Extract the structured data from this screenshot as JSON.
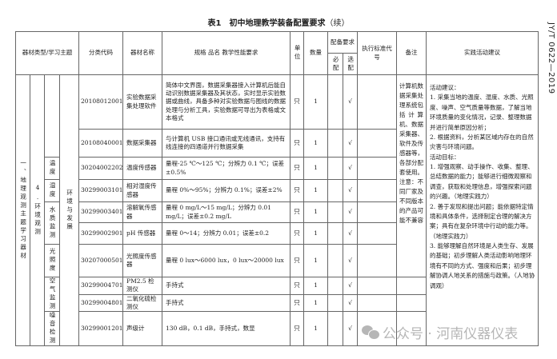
{
  "title": "表1　初中地理教学装备配置要求",
  "title_suffix": "（续）",
  "standard_code": "JY/T 0622—2019",
  "headers": {
    "category": "器材类型/学习主题",
    "code": "分类代码",
    "name": "器材名称",
    "spec": "规格 品名 教学性能要求",
    "unit": "单位",
    "qty": "数量",
    "config": "配备要求",
    "required": "必配",
    "optional": "选配",
    "standard": "执行标准代号",
    "remark": "备注",
    "activity": "实践活动建议"
  },
  "category": {
    "level1": "一、地理观测主题学习器材",
    "level2": "4.环境观测",
    "level4": "环境与发展",
    "sub": [
      "温度",
      "湿度",
      "水质监测",
      "光照度",
      "空气监测",
      "噪音检测"
    ]
  },
  "rows": [
    {
      "code": "20108012001",
      "name": "实验数据采集处理软件",
      "spec": "简体中文界面，数据采集器接入计算机后能自动识别数据采集器及其状态，实时显示实验数据或曲线，具备多种对实验数据与图线的数据处理与分析工具，实验数据可导出为表格或文本格式",
      "unit": "只",
      "qty": "1",
      "optional": "√"
    },
    {
      "code": "20108040001",
      "name": "数据采集器",
      "spec": "与计算机 USB 接口通讯或无线通讯，支持有线连接的四通道并行数据采集",
      "unit": "只",
      "qty": "1",
      "optional": "√"
    },
    {
      "code": "30204002202",
      "name": "温度传感器",
      "spec": "量程-25 ℃～125 ℃；分辨力 0.1 ℃；误差±0.5%",
      "unit": "只",
      "qty": "1",
      "optional": "√"
    },
    {
      "code": "30299003101",
      "name": "相对湿度传感器",
      "spec": "量程 0%～95%；分辨力 0.1%；误差±2%",
      "unit": "只",
      "qty": "1",
      "optional": "√"
    },
    {
      "code": "30299003401",
      "name": "溶解氧传感器",
      "spec": "量程 0 mg/L～15 mg/L；分辨力 0.01 mg/L；误差±0.2 mg/L",
      "unit": "只",
      "qty": "1",
      "optional": "√"
    },
    {
      "code": "30299002901",
      "name": "pH 传感器",
      "spec": "量程 0～14；分辨力 0.01；误差±0.2",
      "unit": "只",
      "qty": "1",
      "optional": "√"
    },
    {
      "code": "30207000501",
      "name": "光照度传感器",
      "spec": "量程 0 lux～6000 lux，0 lux～20000 lux",
      "unit": "只",
      "qty": "1",
      "optional": "√"
    },
    {
      "code": "30299004701",
      "name": "PM2.5 检测仪",
      "spec": "手持式",
      "unit": "只",
      "qty": "1",
      "optional": "√"
    },
    {
      "code": "30299004801",
      "name": "二氧化硫检测仪",
      "spec": "手持式",
      "unit": "只",
      "qty": "1",
      "optional": "√"
    },
    {
      "code": "30299001201",
      "name": "声级计",
      "spec": "130 dB，0.1 dB，手持式，数显",
      "unit": "只",
      "qty": "1",
      "optional": "√"
    }
  ],
  "remark": "计算机数据采集处理系统包括计算机、数据采集器、软件及传感器等，各部分配套使用。注意：不同厂家及不同版本的产品可能不兼容",
  "activity": [
    "活动建议：",
    "1. 采集当地的温度、湿度、水质、光照度、噪声、空气质量等数据，了解当地环境质量的变化情况，记录、整理数据并进行简单原因分析；",
    "2. 根据资料，分析某区域内存在的自然灾害与环境问题。",
    "活动目标：",
    "1. 增强观察、动手操作、收集、整理、总结数据的能力；能够进行细微观察和调查，获取和处理信息，增强探索问题的兴趣。（地理实践力）",
    "2. 善于发现和提出问题；能依据特定情境和具体条件，选择制定合理的解决方案；具有在复杂环境中行动的能力等。（地理实践力）",
    "3. 能够理解自然环境是人类生存、发展的基础；初步理解人类活动影响地理环境有不同的方式、强度和后果；初步理解协调人地关系的措施与政策。（人地协调观）"
  ],
  "watermark": "公众号 · 河南仪器仪表"
}
